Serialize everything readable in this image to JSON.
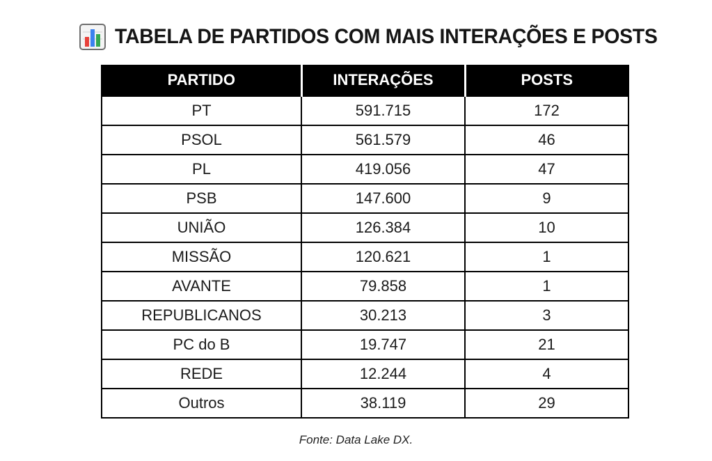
{
  "title": {
    "icon": "bar-chart-icon",
    "text": "TABELA DE PARTIDOS COM MAIS INTERAÇÕES E POSTS"
  },
  "table": {
    "headers": [
      "PARTIDO",
      "INTERAÇÕES",
      "POSTS"
    ],
    "rows": [
      [
        "PT",
        "591.715",
        "172"
      ],
      [
        "PSOL",
        "561.579",
        "46"
      ],
      [
        "PL",
        "419.056",
        "47"
      ],
      [
        "PSB",
        "147.600",
        "9"
      ],
      [
        "UNIÃO",
        "126.384",
        "10"
      ],
      [
        "MISSÃO",
        "120.621",
        "1"
      ],
      [
        "AVANTE",
        "79.858",
        "1"
      ],
      [
        "REPUBLICANOS",
        "30.213",
        "3"
      ],
      [
        "PC do B",
        "19.747",
        "21"
      ],
      [
        "REDE",
        "12.244",
        "4"
      ],
      [
        "Outros",
        "38.119",
        "29"
      ]
    ]
  },
  "footer": "Fonte: Data Lake DX.",
  "colors": {
    "header_bg": "#000000",
    "header_text": "#ffffff",
    "border": "#000000",
    "icon_frame": "#6e6e6e",
    "icon_bar_1": "#e8413a",
    "icon_bar_2": "#3b82f0",
    "icon_bar_3": "#34a853"
  }
}
